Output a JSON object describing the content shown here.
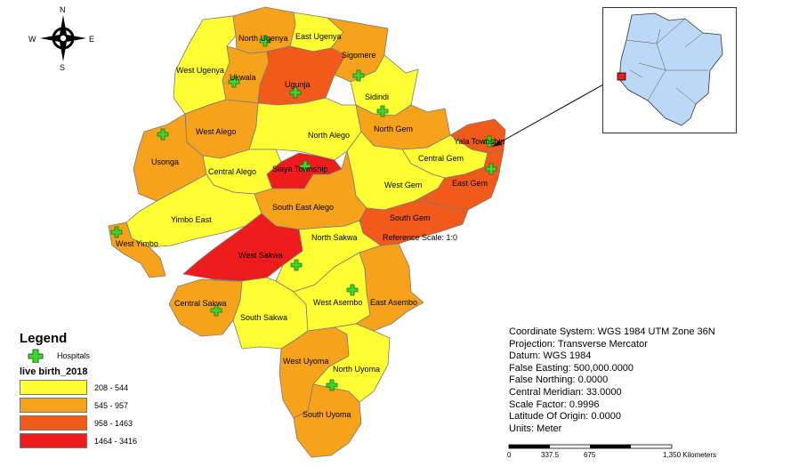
{
  "compass": {
    "n": "N",
    "e": "E",
    "s": "S",
    "w": "W"
  },
  "colors": {
    "c1": "#ffff33",
    "c2": "#f7a21b",
    "c3": "#f15a1a",
    "c4": "#ee1c1c",
    "hospital": "#3dd62f",
    "inset_fill": "#bcd8f7"
  },
  "wards": [
    {
      "key": "north_ugenya",
      "label": "North Ugenya",
      "class": "c2"
    },
    {
      "key": "east_ugenya",
      "label": "East Ugenya",
      "class": "c1"
    },
    {
      "key": "sigomere",
      "label": "Sigomere",
      "class": "c2"
    },
    {
      "key": "west_ugenya",
      "label": "West Ugenya",
      "class": "c1"
    },
    {
      "key": "ukwala",
      "label": "Ukwala",
      "class": "c2"
    },
    {
      "key": "ugunja",
      "label": "Ugunja",
      "class": "c3"
    },
    {
      "key": "sidindi",
      "label": "Sidindi",
      "class": "c1"
    },
    {
      "key": "west_alego",
      "label": "West Alego",
      "class": "c2"
    },
    {
      "key": "north_alego",
      "label": "North Alego",
      "class": "c1"
    },
    {
      "key": "north_gem",
      "label": "North Gem",
      "class": "c2"
    },
    {
      "key": "yala_township",
      "label": "Yala Township",
      "class": "c3"
    },
    {
      "key": "usonga",
      "label": "Usonga",
      "class": "c2"
    },
    {
      "key": "central_alego",
      "label": "Central Alego",
      "class": "c1"
    },
    {
      "key": "siaya_township",
      "label": "Siaya Township",
      "class": "c4"
    },
    {
      "key": "central_gem",
      "label": "Central Gem",
      "class": "c1"
    },
    {
      "key": "west_gem",
      "label": "West Gem",
      "class": "c1"
    },
    {
      "key": "east_gem",
      "label": "East Gem",
      "class": "c3"
    },
    {
      "key": "yimbo_east",
      "label": "Yimbo East",
      "class": "c1"
    },
    {
      "key": "south_east_alego",
      "label": "South East Alego",
      "class": "c2"
    },
    {
      "key": "south_gem",
      "label": "South Gem",
      "class": "c3"
    },
    {
      "key": "west_yimbo",
      "label": "West Yimbo",
      "class": "c2"
    },
    {
      "key": "north_sakwa",
      "label": "North Sakwa",
      "class": "c1"
    },
    {
      "key": "west_sakwa",
      "label": "West Sakwa",
      "class": "c4"
    },
    {
      "key": "central_sakwa",
      "label": "Central Sakwa",
      "class": "c2"
    },
    {
      "key": "south_sakwa",
      "label": "South Sakwa",
      "class": "c1"
    },
    {
      "key": "west_asembo",
      "label": "West Asembo",
      "class": "c1"
    },
    {
      "key": "east_asembo",
      "label": "East Asembo",
      "class": "c2"
    },
    {
      "key": "west_uyoma",
      "label": "West Uyoma",
      "class": "c2"
    },
    {
      "key": "north_uyoma",
      "label": "North Uyoma",
      "class": "c1"
    },
    {
      "key": "south_uyoma",
      "label": "South Uyoma",
      "class": "c2"
    }
  ],
  "reference_scale": "Reference Scale: 1:0",
  "legend": {
    "title": "Legend",
    "hospital_label": "Hospitals",
    "field_name": "live birth_2018",
    "classes": [
      {
        "range": "208 - 544",
        "color": "#ffff33"
      },
      {
        "range": "545 - 957",
        "color": "#f7a21b"
      },
      {
        "range": "958 - 1463",
        "color": "#f15a1a"
      },
      {
        "range": "1464 - 3416",
        "color": "#ee1c1c"
      }
    ]
  },
  "crs": {
    "coordinate_system": "Coordinate System: WGS 1984 UTM Zone 36N",
    "projection": "Projection: Transverse Mercator",
    "datum": "Datum: WGS 1984",
    "false_easting": "False Easting: 500,000.0000",
    "false_northing": "False Northing: 0.0000",
    "central_meridian": "Central Meridian: 33.0000",
    "scale_factor": "Scale Factor: 0.9996",
    "latitude_of_origin": "Latitude Of Origin: 0.0000",
    "units": "Units: Meter"
  },
  "scale_bar": {
    "ticks": [
      "0",
      "337.5",
      "675",
      "1,350 Kilometers"
    ]
  }
}
